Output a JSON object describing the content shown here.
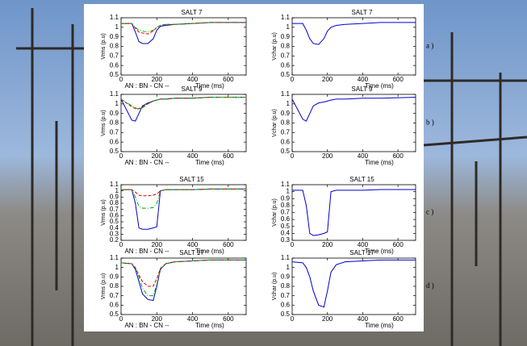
{
  "chart_data": [
    {
      "type": "line",
      "title": "SALT 7",
      "ylabel": "Vrms (p.u)",
      "xlabel": "Time (ms)",
      "annotation": "AN : BN - CN --",
      "x": [
        0,
        60,
        80,
        100,
        120,
        150,
        180,
        200,
        220,
        250,
        300,
        400,
        500,
        700
      ],
      "series": [
        {
          "color": "#0000cc",
          "dash": "solid",
          "values": [
            1.04,
            1.04,
            0.95,
            0.85,
            0.83,
            0.83,
            0.88,
            0.97,
            1.01,
            1.02,
            1.03,
            1.04,
            1.05,
            1.05
          ]
        },
        {
          "color": "#dd0000",
          "dash": "dashed",
          "values": [
            1.04,
            1.04,
            0.99,
            0.95,
            0.94,
            0.93,
            0.96,
            1.0,
            1.02,
            1.03,
            1.03,
            1.04,
            1.05,
            1.05
          ]
        },
        {
          "color": "#00aa00",
          "dash": "dashdot",
          "values": [
            1.04,
            1.04,
            1.0,
            0.97,
            0.96,
            0.95,
            0.97,
            1.0,
            1.02,
            1.03,
            1.03,
            1.04,
            1.05,
            1.05
          ]
        }
      ],
      "xlim": [
        0,
        700
      ],
      "xticks": [
        0,
        200,
        400,
        600
      ],
      "ylim": [
        0.5,
        1.1
      ],
      "yticks": [
        0.5,
        0.6,
        0.7,
        0.8,
        0.9,
        1,
        1.1
      ]
    },
    {
      "type": "line",
      "title": "SALT 7",
      "ylabel": "Vchar (p.u)",
      "xlabel": "Time (ms)",
      "panel_label": "a )",
      "x": [
        0,
        60,
        80,
        100,
        120,
        150,
        180,
        200,
        220,
        250,
        300,
        400,
        500,
        700
      ],
      "series": [
        {
          "color": "#0000cc",
          "dash": "solid",
          "values": [
            1.04,
            1.04,
            0.97,
            0.88,
            0.83,
            0.82,
            0.88,
            0.96,
            1.0,
            1.02,
            1.03,
            1.04,
            1.05,
            1.05
          ]
        }
      ],
      "xlim": [
        0,
        700
      ],
      "xticks": [
        0,
        200,
        400,
        600
      ],
      "ylim": [
        0.5,
        1.1
      ],
      "yticks": [
        0.5,
        0.6,
        0.7,
        0.8,
        0.9,
        1,
        1.1
      ]
    },
    {
      "type": "line",
      "title": "SALT 9",
      "ylabel": "Vrms (p.u)",
      "xlabel": "Time (ms)",
      "annotation": "AN : BN - CN --",
      "x": [
        0,
        60,
        80,
        100,
        120,
        150,
        180,
        200,
        220,
        250,
        300,
        400,
        500,
        700
      ],
      "series": [
        {
          "color": "#0000cc",
          "dash": "solid",
          "values": [
            1.05,
            0.83,
            0.82,
            0.9,
            0.98,
            1.01,
            1.03,
            1.04,
            1.05,
            1.05,
            1.06,
            1.06,
            1.07,
            1.07
          ]
        },
        {
          "color": "#dd0000",
          "dash": "dashed",
          "values": [
            1.05,
            0.97,
            0.95,
            0.95,
            0.97,
            1.0,
            1.03,
            1.04,
            1.05,
            1.05,
            1.06,
            1.06,
            1.07,
            1.07
          ]
        },
        {
          "color": "#00aa00",
          "dash": "dashdot",
          "values": [
            1.05,
            0.98,
            0.96,
            0.94,
            0.96,
            1.0,
            1.03,
            1.04,
            1.05,
            1.05,
            1.06,
            1.06,
            1.07,
            1.07
          ]
        }
      ],
      "xlim": [
        0,
        700
      ],
      "xticks": [
        0,
        200,
        400,
        600
      ],
      "ylim": [
        0.5,
        1.1
      ],
      "yticks": [
        0.5,
        0.6,
        0.7,
        0.8,
        0.9,
        1,
        1.1
      ]
    },
    {
      "type": "line",
      "title": "SALT 9",
      "ylabel": "Vchar (p.u)",
      "xlabel": "Time (ms)",
      "panel_label": "b )",
      "x": [
        0,
        60,
        80,
        100,
        120,
        150,
        180,
        200,
        220,
        250,
        300,
        400,
        500,
        700
      ],
      "series": [
        {
          "color": "#0000cc",
          "dash": "solid",
          "values": [
            1.05,
            0.84,
            0.82,
            0.9,
            0.98,
            1.01,
            1.02,
            1.03,
            1.04,
            1.05,
            1.05,
            1.06,
            1.06,
            1.07
          ]
        }
      ],
      "xlim": [
        0,
        700
      ],
      "xticks": [
        0,
        200,
        400,
        600
      ],
      "ylim": [
        0.5,
        1.1
      ],
      "yticks": [
        0.5,
        0.6,
        0.7,
        0.8,
        0.9,
        1,
        1.1
      ]
    },
    {
      "type": "line",
      "title": "SALT 15",
      "ylabel": "Vrms (p.u)",
      "xlabel": "Time (ms)",
      "annotation": "AN : BN - CN --",
      "x": [
        0,
        60,
        80,
        100,
        120,
        150,
        180,
        200,
        220,
        250,
        300,
        400,
        500,
        700
      ],
      "series": [
        {
          "color": "#0000cc",
          "dash": "solid",
          "values": [
            1.02,
            1.02,
            0.8,
            0.4,
            0.38,
            0.38,
            0.4,
            0.42,
            1.0,
            1.02,
            1.02,
            1.02,
            1.03,
            1.03
          ]
        },
        {
          "color": "#dd0000",
          "dash": "dashed",
          "values": [
            1.02,
            1.02,
            0.98,
            0.93,
            0.92,
            0.92,
            0.93,
            0.95,
            1.0,
            1.02,
            1.02,
            1.02,
            1.03,
            1.03
          ]
        },
        {
          "color": "#00aa00",
          "dash": "dashdot",
          "values": [
            1.02,
            1.02,
            0.9,
            0.75,
            0.72,
            0.72,
            0.73,
            0.8,
            1.0,
            1.02,
            1.02,
            1.02,
            1.03,
            1.03
          ]
        }
      ],
      "xlim": [
        0,
        700
      ],
      "xticks": [
        0,
        200,
        400,
        600
      ],
      "ylim": [
        0.2,
        1.1
      ],
      "yticks": [
        0.2,
        0.3,
        0.4,
        0.5,
        0.6,
        0.7,
        0.8,
        0.9,
        1,
        1.1
      ]
    },
    {
      "type": "line",
      "title": "SALT 15",
      "ylabel": "Vchar (p.u)",
      "xlabel": "Time (ms)",
      "panel_label": "c )",
      "x": [
        0,
        60,
        80,
        100,
        120,
        150,
        180,
        200,
        220,
        250,
        300,
        400,
        500,
        700
      ],
      "series": [
        {
          "color": "#0000cc",
          "dash": "solid",
          "values": [
            1.02,
            1.02,
            0.8,
            0.4,
            0.37,
            0.38,
            0.4,
            0.42,
            1.0,
            1.02,
            1.02,
            1.02,
            1.03,
            1.03
          ]
        }
      ],
      "xlim": [
        0,
        700
      ],
      "xticks": [
        0,
        200,
        400,
        600
      ],
      "ylim": [
        0.3,
        1.1
      ],
      "yticks": [
        0.3,
        0.4,
        0.5,
        0.6,
        0.7,
        0.8,
        0.9,
        1,
        1.1
      ]
    },
    {
      "type": "line",
      "title": "SALT 17",
      "ylabel": "Vrms (p.u)",
      "xlabel": "Time (ms)",
      "annotation": "AN : BN - CN --",
      "x": [
        0,
        60,
        80,
        100,
        120,
        150,
        180,
        200,
        220,
        250,
        300,
        400,
        500,
        700
      ],
      "series": [
        {
          "color": "#0000cc",
          "dash": "solid",
          "values": [
            1.05,
            1.04,
            0.98,
            0.85,
            0.72,
            0.66,
            0.65,
            0.8,
            0.98,
            1.04,
            1.06,
            1.07,
            1.08,
            1.08
          ]
        },
        {
          "color": "#dd0000",
          "dash": "dashed",
          "values": [
            1.05,
            1.04,
            1.0,
            0.92,
            0.85,
            0.8,
            0.8,
            0.88,
            0.99,
            1.04,
            1.06,
            1.07,
            1.08,
            1.08
          ]
        },
        {
          "color": "#00aa00",
          "dash": "dashdot",
          "values": [
            1.05,
            1.04,
            0.99,
            0.9,
            0.78,
            0.7,
            0.7,
            0.82,
            0.98,
            1.04,
            1.06,
            1.07,
            1.08,
            1.08
          ]
        }
      ],
      "xlim": [
        0,
        700
      ],
      "xticks": [
        0,
        200,
        400,
        600
      ],
      "ylim": [
        0.5,
        1.1
      ],
      "yticks": [
        0.5,
        0.6,
        0.7,
        0.8,
        0.9,
        1,
        1.1
      ]
    },
    {
      "type": "line",
      "title": "SALT 17",
      "ylabel": "Vchar (p.u)",
      "xlabel": "Time (ms)",
      "panel_label": "d )",
      "x": [
        0,
        60,
        80,
        100,
        120,
        150,
        180,
        200,
        220,
        250,
        300,
        400,
        500,
        700
      ],
      "series": [
        {
          "color": "#0000cc",
          "dash": "solid",
          "values": [
            1.06,
            1.05,
            1.0,
            0.9,
            0.75,
            0.6,
            0.58,
            0.75,
            0.95,
            1.03,
            1.06,
            1.07,
            1.08,
            1.08
          ]
        }
      ],
      "xlim": [
        0,
        700
      ],
      "xticks": [
        0,
        200,
        400,
        600
      ],
      "ylim": [
        0.5,
        1.1
      ],
      "yticks": [
        0.5,
        0.6,
        0.7,
        0.8,
        0.9,
        1,
        1.1
      ]
    }
  ]
}
